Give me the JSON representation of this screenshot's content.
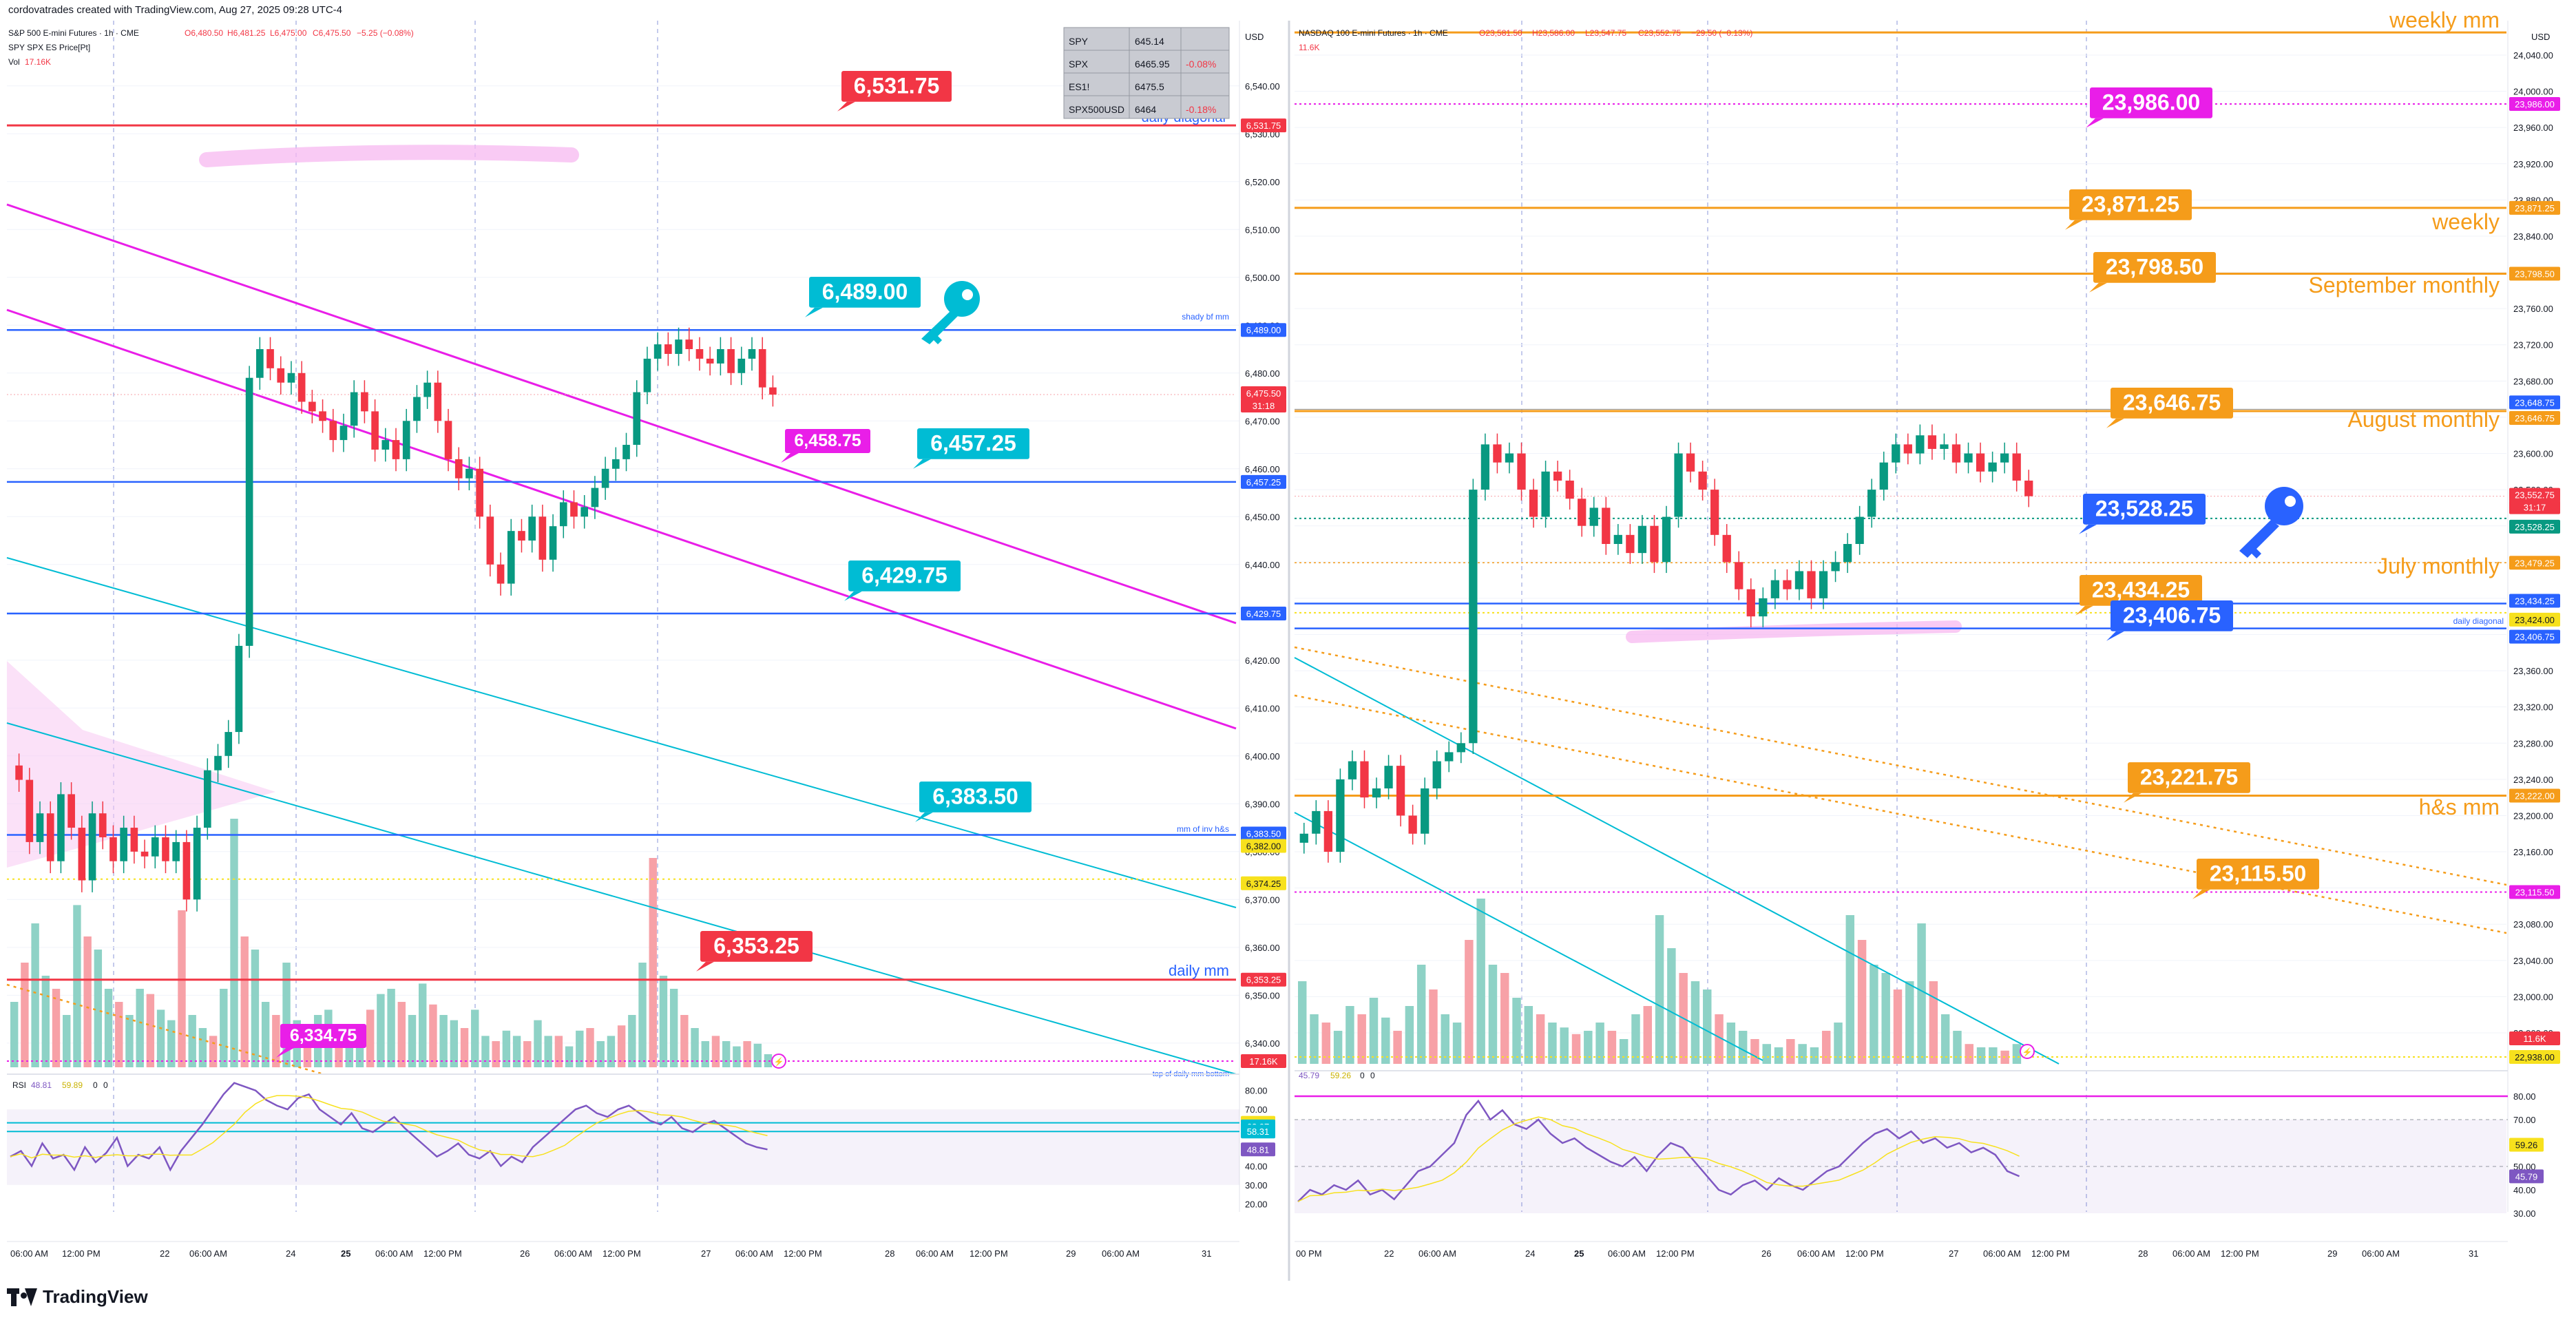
{
  "credit": "cordovatrades created with TradingView.com, Aug 27, 2025 09:28 UTC-4",
  "brand": "TradingView",
  "colors": {
    "red": "#f23645",
    "blue": "#2962ff",
    "cyan": "#00bcd4",
    "magenta": "#e91ee8",
    "orange": "#f59c1a",
    "yellow": "#f7e11d",
    "purple": "#7e57c2",
    "green": "#089981"
  },
  "left": {
    "title": "S&P 500 E-mini Futures · 1h · CME",
    "ohlc": {
      "o": "O6,480.50",
      "h": "H6,481.25",
      "l": "L6,475.00",
      "c": "C6,475.50",
      "chg": "−5.25 (−0.08%)"
    },
    "subtitle": "SPY SPX ES Price[Pt]",
    "vol_label": "Vol",
    "vol_value": "17.16K",
    "currency": "USD",
    "axis_ticks": [
      "6,540.00",
      "6,530.00",
      "6,520.00",
      "6,510.00",
      "6,500.00",
      "6,490.00",
      "6,480.00",
      "6,470.00",
      "6,460.00",
      "6,450.00",
      "6,440.00",
      "6,430.00",
      "6,420.00",
      "6,410.00",
      "6,400.00",
      "6,390.00",
      "6,380.00",
      "6,370.00",
      "6,360.00",
      "6,350.00",
      "6,340.00"
    ],
    "axis_badges": [
      {
        "text": "6,531.75",
        "color": "#f23645"
      },
      {
        "text": "6,489.00",
        "color": "#2962ff"
      },
      {
        "text": "6,475.50",
        "color": "#f23645"
      },
      {
        "text": "31:18",
        "color": "#f23645"
      },
      {
        "text": "6,457.25",
        "color": "#2962ff"
      },
      {
        "text": "6,429.75",
        "color": "#2962ff"
      },
      {
        "text": "6,383.50",
        "color": "#2962ff"
      },
      {
        "text": "6,382.00",
        "color": "#f7e11d"
      },
      {
        "text": "6,374.25",
        "color": "#f7e11d"
      },
      {
        "text": "6,353.25",
        "color": "#f23645"
      },
      {
        "text": "17.16K",
        "color": "#f23645"
      }
    ],
    "levels": [
      {
        "text": "6,531.75",
        "color": "#f23645"
      },
      {
        "text": "6,489.00",
        "color": "#00bcd4"
      },
      {
        "text": "6,458.75",
        "color": "#e91ee8"
      },
      {
        "text": "6,457.25",
        "color": "#00bcd4"
      },
      {
        "text": "6,429.75",
        "color": "#00bcd4"
      },
      {
        "text": "6,383.50",
        "color": "#00bcd4"
      },
      {
        "text": "6,353.25",
        "color": "#f23645"
      },
      {
        "text": "6,334.75",
        "color": "#e91ee8"
      }
    ],
    "line_labels": {
      "daily_diagonal": "daily diagonal",
      "shady": "shady bf mm",
      "inv_hs": "mm of inv h&s",
      "daily_mm": "daily mm",
      "daily_bottom": "top of daily mm bottom"
    },
    "watchlist": [
      {
        "symbol": "SPY",
        "price": "645.14",
        "change": ""
      },
      {
        "symbol": "SPX",
        "price": "6465.95",
        "change": "-0.08%"
      },
      {
        "symbol": "ES1!",
        "price": "6475.5",
        "change": ""
      },
      {
        "symbol": "SPX500USD",
        "price": "6464",
        "change": "-0.18%"
      }
    ],
    "rsi": {
      "label": "RSI",
      "v1": "48.81",
      "v2": "59.89",
      "v3": "0",
      "v4": "0",
      "ticks": [
        "80.00",
        "70.00",
        "60.00",
        "50.00",
        "40.00",
        "30.00",
        "20.00"
      ],
      "badges": [
        "62.90",
        "62.07",
        "58.31",
        "48.81"
      ]
    },
    "time_labels": [
      "06:00 AM",
      "12:00 PM",
      "22",
      "06:00 AM",
      "24",
      "25",
      "06:00 AM",
      "12:00 PM",
      "26",
      "06:00 AM",
      "12:00 PM",
      "27",
      "06:00 AM",
      "12:00 PM",
      "28",
      "06:00 AM",
      "12:00 PM",
      "29",
      "06:00 AM",
      "31"
    ]
  },
  "right": {
    "title": "NASDAQ 100 E-mini Futures · 1h · CME",
    "ohlc": {
      "o": "O23,581.50",
      "h": "H23,586.00",
      "l": "L23,547.75",
      "c": "C23,552.75",
      "chg": "−29.50 (−0.13%)"
    },
    "vol_value": "11.6K",
    "currency": "USD",
    "axis_ticks": [
      "24,040.00",
      "24,000.00",
      "23,960.00",
      "23,920.00",
      "23,880.00",
      "23,840.00",
      "23,800.00",
      "23,760.00",
      "23,720.00",
      "23,680.00",
      "23,640.00",
      "23,600.00",
      "23,560.00",
      "23,520.00",
      "23,480.00",
      "23,440.00",
      "23,400.00",
      "23,360.00",
      "23,320.00",
      "23,280.00",
      "23,240.00",
      "23,200.00",
      "23,160.00",
      "23,120.00",
      "23,080.00",
      "23,040.00",
      "23,000.00",
      "22,960.00"
    ],
    "axis_badges": [
      {
        "text": "23,986.00",
        "color": "#e91ee8"
      },
      {
        "text": "23,871.25",
        "color": "#f59c1a"
      },
      {
        "text": "23,798.50",
        "color": "#f59c1a"
      },
      {
        "text": "23,648.75",
        "color": "#2962ff"
      },
      {
        "text": "23,646.75",
        "color": "#f59c1a"
      },
      {
        "text": "23,552.75",
        "color": "#f23645"
      },
      {
        "text": "31:17",
        "color": "#f23645"
      },
      {
        "text": "23,528.25",
        "color": "#089981"
      },
      {
        "text": "23,479.25",
        "color": "#f59c1a"
      },
      {
        "text": "23,434.25",
        "color": "#2962ff"
      },
      {
        "text": "23,424.00",
        "color": "#f7e11d"
      },
      {
        "text": "23,406.75",
        "color": "#2962ff"
      },
      {
        "text": "23,222.00",
        "color": "#f59c1a"
      },
      {
        "text": "23,115.50",
        "color": "#e91ee8"
      },
      {
        "text": "11.6K",
        "color": "#f23645"
      },
      {
        "text": "22,938.00",
        "color": "#f7e11d"
      }
    ],
    "levels": [
      {
        "text": "23,986.00",
        "color": "#e91ee8"
      },
      {
        "text": "23,871.25",
        "color": "#f59c1a"
      },
      {
        "text": "23,798.50",
        "color": "#f59c1a"
      },
      {
        "text": "23,646.75",
        "color": "#f59c1a"
      },
      {
        "text": "23,528.25",
        "color": "#2962ff"
      },
      {
        "text": "23,434.25",
        "color": "#f59c1a"
      },
      {
        "text": "23,406.75",
        "color": "#2962ff"
      },
      {
        "text": "23,221.75",
        "color": "#f59c1a"
      },
      {
        "text": "23,115.50",
        "color": "#f59c1a"
      }
    ],
    "line_labels": {
      "weekly_mm": "weekly mm",
      "weekly": "weekly",
      "september": "September monthly",
      "august": "August monthly",
      "july": "July monthly",
      "daily_diagonal": "daily diagonal",
      "hs_mm": "h&s mm"
    },
    "rsi": {
      "v1": "45.79",
      "v2": "59.26",
      "v3": "0",
      "v4": "0",
      "ticks": [
        "80.00",
        "70.00",
        "60.00",
        "50.00",
        "40.00",
        "30.00"
      ],
      "badges": [
        "59.26",
        "45.79"
      ]
    },
    "time_labels": [
      "00 PM",
      "22",
      "06:00 AM",
      "24",
      "25",
      "06:00 AM",
      "12:00 PM",
      "26",
      "06:00 AM",
      "12:00 PM",
      "27",
      "06:00 AM",
      "12:00 PM",
      "28",
      "06:00 AM",
      "12:00 PM",
      "29",
      "06:00 AM",
      "31"
    ]
  },
  "chart_data": [
    {
      "type": "candlestick",
      "title": "S&P 500 E-mini Futures · 1h · CME",
      "ylim": [
        6330,
        6545
      ],
      "x_range": [
        "Aug 21",
        "Aug 31"
      ],
      "horizontal_levels": [
        6531.75,
        6489.0,
        6457.25,
        6429.75,
        6383.5,
        6382.0,
        6374.25,
        6353.25
      ],
      "close_series": [
        6395,
        6382,
        6388,
        6378,
        6392,
        6385,
        6374,
        6388,
        6383,
        6378,
        6385,
        6380,
        6379,
        6383,
        6378,
        6382,
        6370,
        6385,
        6397,
        6400,
        6405,
        6423,
        6479,
        6485,
        6481,
        6478,
        6480,
        6474,
        6472,
        6470,
        6466,
        6469,
        6476,
        6472,
        6464,
        6466,
        6462,
        6470,
        6475,
        6478,
        6470,
        6462,
        6458,
        6460,
        6450,
        6440,
        6436,
        6447,
        6445,
        6450,
        6441,
        6448,
        6453,
        6450,
        6452,
        6456,
        6460,
        6462,
        6465,
        6476,
        6483,
        6486,
        6484,
        6487,
        6485,
        6483,
        6482,
        6485,
        6480,
        6483,
        6485,
        6477,
        6475.5
      ],
      "last": 6475.5
    },
    {
      "type": "candlestick",
      "title": "NASDAQ 100 E-mini Futures · 1h · CME",
      "ylim": [
        22955,
        24060
      ],
      "x_range": [
        "Aug 21",
        "Aug 31"
      ],
      "horizontal_levels": [
        23986.0,
        23871.25,
        23798.5,
        23646.75,
        23528.25,
        23479.25,
        23434.25,
        23406.75,
        23222.0,
        23115.5
      ],
      "close_series": [
        23180,
        23205,
        23160,
        23240,
        23260,
        23220,
        23230,
        23255,
        23200,
        23180,
        23230,
        23260,
        23270,
        23280,
        23560,
        23610,
        23590,
        23600,
        23560,
        23530,
        23580,
        23570,
        23550,
        23520,
        23540,
        23500,
        23510,
        23490,
        23520,
        23480,
        23530,
        23600,
        23580,
        23560,
        23510,
        23480,
        23450,
        23420,
        23440,
        23460,
        23450,
        23470,
        23440,
        23470,
        23480,
        23500,
        23530,
        23560,
        23590,
        23610,
        23600,
        23620,
        23605,
        23610,
        23590,
        23600,
        23580,
        23590,
        23600,
        23570,
        23552.75
      ],
      "last": 23552.75
    }
  ]
}
